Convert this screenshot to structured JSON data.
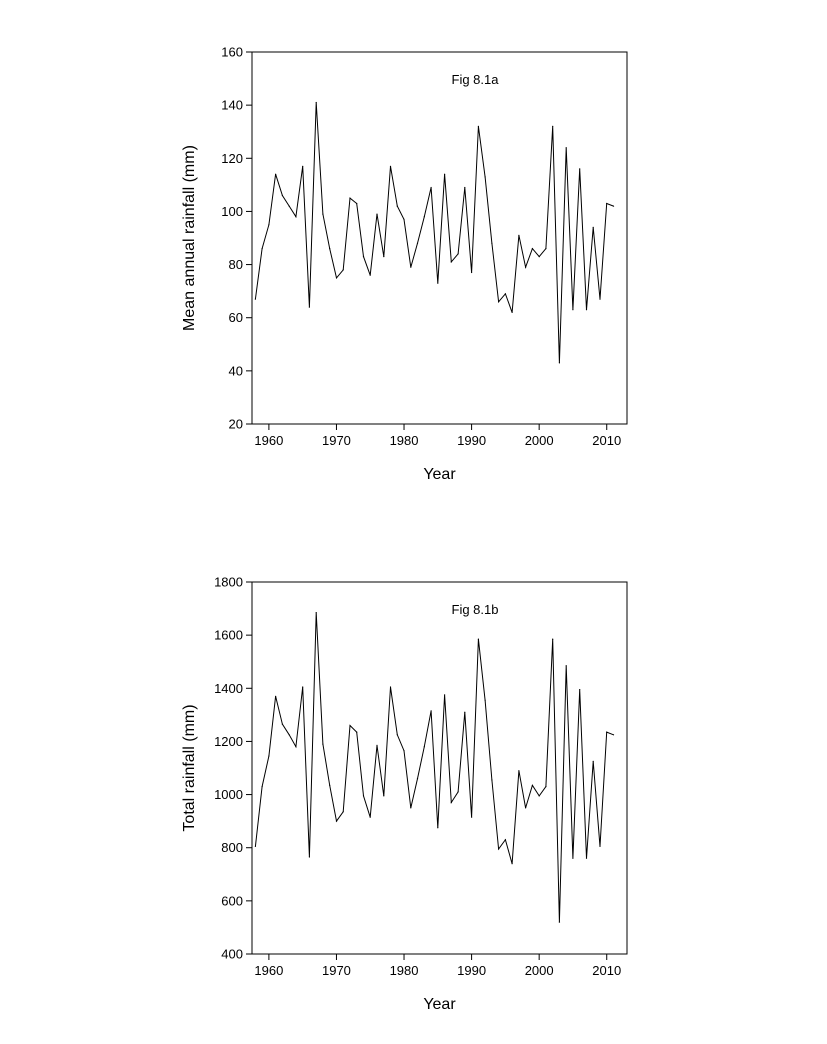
{
  "chart_data": [
    {
      "type": "line",
      "annotation": "Fig 8.1a",
      "xlabel": "Year",
      "ylabel": "Mean annual rainfall (mm)",
      "xlim": [
        1957.5,
        2013
      ],
      "ylim": [
        20,
        160
      ],
      "xticks": [
        1960,
        1970,
        1980,
        1990,
        2000,
        2010
      ],
      "yticks": [
        20,
        40,
        60,
        80,
        100,
        120,
        140,
        160
      ],
      "grid": false,
      "series": [
        {
          "x": [
            1958,
            1959,
            1960,
            1961,
            1962,
            1963,
            1964,
            1965,
            1966,
            1967,
            1968,
            1969,
            1970,
            1971,
            1972,
            1973,
            1974,
            1975,
            1976,
            1977,
            1978,
            1979,
            1980,
            1981,
            1982,
            1983,
            1984,
            1985,
            1986,
            1987,
            1988,
            1989,
            1990,
            1991,
            1992,
            1993,
            1994,
            1995,
            1996,
            1997,
            1998,
            1999,
            2000,
            2001,
            2002,
            2003,
            2004,
            2005,
            2006,
            2007,
            2008,
            2009,
            2010,
            2011
          ],
          "values": [
            67,
            86,
            95,
            114,
            106,
            102,
            98,
            117,
            64,
            141,
            99,
            86,
            75,
            78,
            105,
            103,
            83,
            76,
            99,
            83,
            117,
            102,
            97,
            79,
            88,
            98,
            109,
            73,
            114,
            81,
            84,
            109,
            77,
            132,
            113,
            88,
            66,
            69,
            62,
            91,
            79,
            86,
            83,
            86,
            132,
            43,
            124,
            63,
            116,
            63,
            94,
            67,
            103,
            102
          ]
        }
      ]
    },
    {
      "type": "line",
      "annotation": "Fig 8.1b",
      "xlabel": "Year",
      "ylabel": "Total rainfall (mm)",
      "xlim": [
        1957.5,
        2013
      ],
      "ylim": [
        400,
        1800
      ],
      "xticks": [
        1960,
        1970,
        1980,
        1990,
        2000,
        2010
      ],
      "yticks": [
        400,
        600,
        800,
        1000,
        1200,
        1400,
        1600,
        1800
      ],
      "grid": false,
      "series": [
        {
          "x": [
            1958,
            1959,
            1960,
            1961,
            1962,
            1963,
            1964,
            1965,
            1966,
            1967,
            1968,
            1969,
            1970,
            1971,
            1972,
            1973,
            1974,
            1975,
            1976,
            1977,
            1978,
            1979,
            1980,
            1981,
            1982,
            1983,
            1984,
            1985,
            1986,
            1987,
            1988,
            1989,
            1990,
            1991,
            1992,
            1993,
            1994,
            1995,
            1996,
            1997,
            1998,
            1999,
            2000,
            2001,
            2002,
            2003,
            2004,
            2005,
            2006,
            2007,
            2008,
            2009,
            2010,
            2011
          ],
          "values": [
            805,
            1030,
            1145,
            1370,
            1265,
            1225,
            1180,
            1405,
            765,
            1685,
            1190,
            1035,
            900,
            935,
            1260,
            1235,
            995,
            915,
            1185,
            995,
            1405,
            1225,
            1165,
            950,
            1060,
            1180,
            1315,
            875,
            1375,
            970,
            1010,
            1310,
            915,
            1585,
            1355,
            1055,
            795,
            830,
            740,
            1090,
            950,
            1035,
            995,
            1030,
            1585,
            520,
            1485,
            760,
            1395,
            760,
            1125,
            805,
            1235,
            1225
          ]
        }
      ]
    }
  ]
}
